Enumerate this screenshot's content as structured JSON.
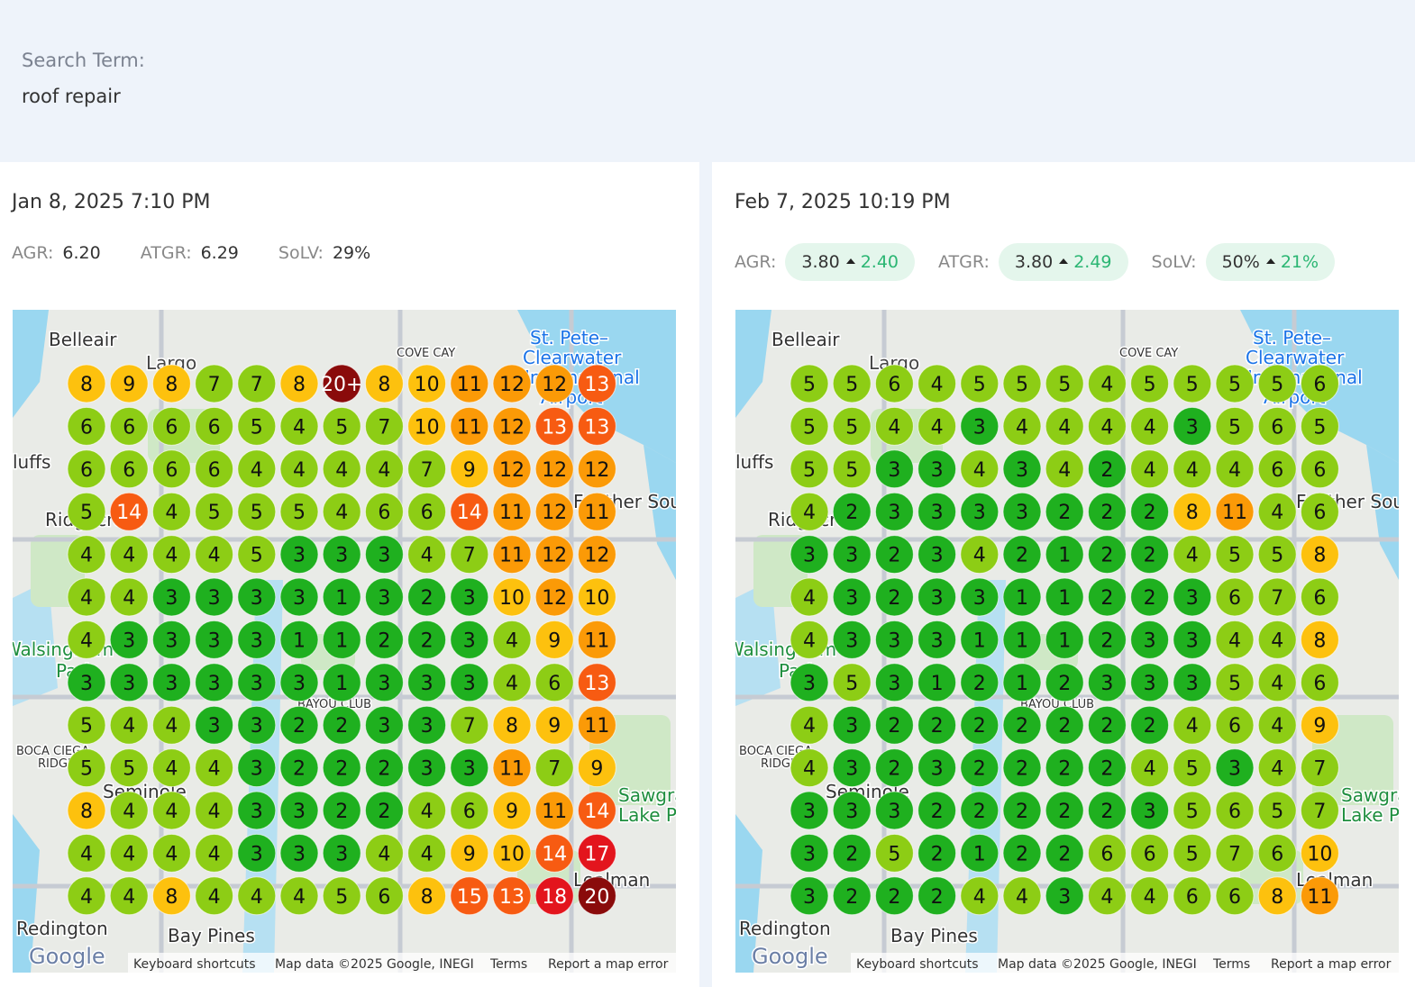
{
  "search": {
    "label": "Search Term:",
    "value": "roof repair"
  },
  "scans": [
    {
      "date": "Jan 8, 2025 7:10 PM",
      "metrics": [
        {
          "label": "AGR:",
          "value": "6.20"
        },
        {
          "label": "ATGR:",
          "value": "6.29"
        },
        {
          "label": "SoLV:",
          "value": "29%"
        }
      ],
      "grid": [
        [
          8,
          9,
          8,
          7,
          7,
          8,
          "20+",
          8,
          10,
          11,
          12,
          12,
          13
        ],
        [
          6,
          6,
          6,
          6,
          5,
          4,
          5,
          7,
          10,
          11,
          12,
          13,
          13
        ],
        [
          6,
          6,
          6,
          6,
          4,
          4,
          4,
          4,
          7,
          9,
          12,
          12,
          12
        ],
        [
          5,
          14,
          4,
          5,
          5,
          5,
          4,
          6,
          6,
          14,
          11,
          12,
          11
        ],
        [
          4,
          4,
          4,
          4,
          5,
          3,
          3,
          3,
          4,
          7,
          11,
          12,
          12
        ],
        [
          4,
          4,
          3,
          3,
          3,
          3,
          1,
          3,
          2,
          3,
          10,
          12,
          10
        ],
        [
          4,
          3,
          3,
          3,
          3,
          1,
          1,
          2,
          2,
          3,
          4,
          9,
          11
        ],
        [
          3,
          3,
          3,
          3,
          3,
          3,
          1,
          3,
          3,
          3,
          4,
          6,
          13
        ],
        [
          5,
          4,
          4,
          3,
          3,
          2,
          2,
          3,
          3,
          7,
          8,
          9,
          11
        ],
        [
          5,
          5,
          4,
          4,
          3,
          2,
          2,
          2,
          3,
          3,
          11,
          7,
          9
        ],
        [
          8,
          4,
          4,
          4,
          3,
          3,
          2,
          2,
          4,
          6,
          9,
          11,
          14
        ],
        [
          4,
          4,
          4,
          4,
          3,
          3,
          3,
          4,
          4,
          9,
          10,
          14,
          17
        ],
        [
          4,
          4,
          8,
          4,
          4,
          4,
          5,
          6,
          8,
          15,
          13,
          18,
          20
        ]
      ]
    },
    {
      "date": "Feb 7, 2025 10:19 PM",
      "metrics": [
        {
          "label": "AGR:",
          "value": "3.80",
          "change": "2.40"
        },
        {
          "label": "ATGR:",
          "value": "3.80",
          "change": "2.49"
        },
        {
          "label": "SoLV:",
          "value": "50%",
          "change": "21%"
        }
      ],
      "grid": [
        [
          5,
          5,
          6,
          4,
          5,
          5,
          5,
          4,
          5,
          5,
          5,
          5,
          6
        ],
        [
          5,
          5,
          4,
          4,
          3,
          4,
          4,
          4,
          4,
          3,
          5,
          6,
          5
        ],
        [
          5,
          5,
          3,
          3,
          4,
          3,
          4,
          2,
          4,
          4,
          4,
          6,
          6
        ],
        [
          4,
          2,
          3,
          3,
          3,
          3,
          2,
          2,
          2,
          8,
          11,
          4,
          6
        ],
        [
          3,
          3,
          2,
          3,
          4,
          2,
          1,
          2,
          2,
          4,
          5,
          5,
          8
        ],
        [
          4,
          3,
          2,
          3,
          3,
          1,
          1,
          2,
          2,
          3,
          6,
          7,
          6
        ],
        [
          4,
          3,
          3,
          3,
          1,
          1,
          1,
          2,
          3,
          3,
          4,
          4,
          8
        ],
        [
          3,
          5,
          3,
          1,
          2,
          1,
          2,
          3,
          3,
          3,
          5,
          4,
          6
        ],
        [
          4,
          3,
          2,
          2,
          2,
          2,
          2,
          2,
          2,
          4,
          6,
          4,
          9
        ],
        [
          4,
          3,
          2,
          3,
          2,
          2,
          2,
          2,
          4,
          5,
          3,
          4,
          7
        ],
        [
          3,
          3,
          3,
          2,
          2,
          2,
          2,
          2,
          3,
          5,
          6,
          5,
          7
        ],
        [
          3,
          2,
          5,
          2,
          1,
          2,
          2,
          6,
          6,
          5,
          7,
          6,
          10
        ],
        [
          3,
          2,
          2,
          2,
          4,
          4,
          3,
          4,
          4,
          6,
          6,
          8,
          11
        ]
      ]
    }
  ],
  "map": {
    "labels": [
      "Belleair",
      "Largo",
      "COVE CAY",
      "St. Pete–",
      "Clearwater",
      "International",
      "Airport",
      "luffs",
      "Ridgecrest",
      "Feather Sound",
      "Walsingham",
      "Park",
      "BAYOU CLUB",
      "BOCA CIEGA",
      "RIDGE",
      "Seminole",
      "Sawgrass",
      "Lake Park",
      "Lealman",
      "Redington",
      "Bay Pines"
    ],
    "footer": {
      "logo": "Google",
      "shortcuts": "Keyboard shortcuts",
      "data": "Map data ©2025 Google, INEGI",
      "terms": "Terms",
      "report": "Report a map error"
    }
  }
}
